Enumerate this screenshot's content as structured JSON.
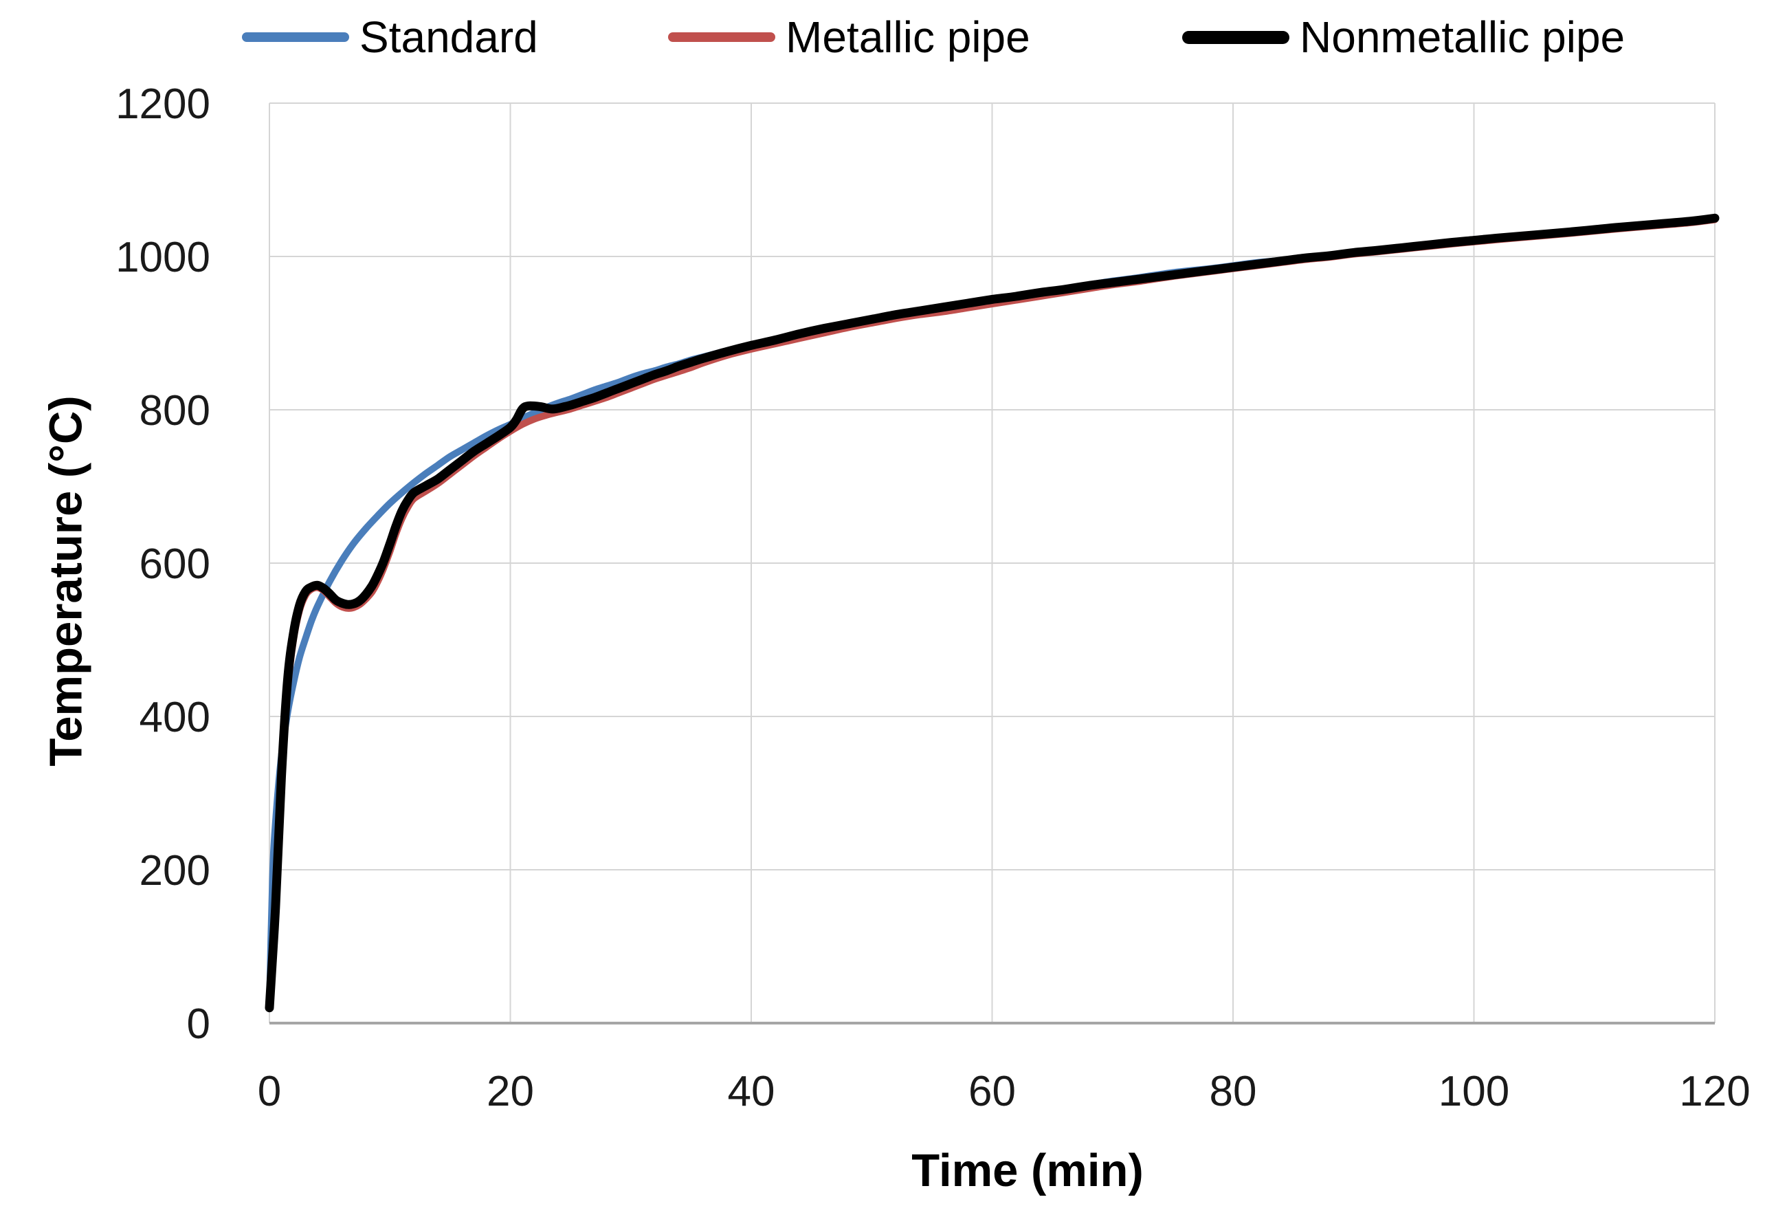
{
  "chart_data": {
    "type": "line",
    "title": "",
    "x_axis": {
      "label": "Time (min)",
      "range": [
        0,
        120
      ],
      "ticks": [
        0,
        20,
        40,
        60,
        80,
        100,
        120
      ]
    },
    "y_axis": {
      "label": "Temperature (°C)",
      "range": [
        0,
        1200
      ],
      "ticks": [
        0,
        200,
        400,
        600,
        800,
        1000,
        1200
      ]
    },
    "grid": true,
    "legend_position": "top",
    "style": {
      "background": "#ffffff",
      "grid_color": "#d5d5d5",
      "axis_line_color": "#a6a6a6",
      "text_color": "#1a1a1a"
    },
    "series": [
      {
        "name": "Standard",
        "color": "#4A7EBB",
        "line_width": 10,
        "points": [
          [
            0,
            20
          ],
          [
            0.25,
            185
          ],
          [
            0.5,
            261
          ],
          [
            1,
            349
          ],
          [
            1.5,
            404
          ],
          [
            2,
            444
          ],
          [
            2.5,
            477
          ],
          [
            3,
            502
          ],
          [
            3.5,
            525
          ],
          [
            4,
            544
          ],
          [
            5,
            576
          ],
          [
            6,
            603
          ],
          [
            7,
            626
          ],
          [
            8,
            645
          ],
          [
            9,
            662
          ],
          [
            10,
            678
          ],
          [
            11,
            692
          ],
          [
            12,
            705
          ],
          [
            13,
            717
          ],
          [
            14,
            728
          ],
          [
            15,
            739
          ],
          [
            16,
            748
          ],
          [
            17,
            757
          ],
          [
            18,
            766
          ],
          [
            19,
            774
          ],
          [
            20,
            781
          ],
          [
            21,
            789
          ],
          [
            22,
            796
          ],
          [
            23,
            803
          ],
          [
            24,
            809
          ],
          [
            25,
            814
          ],
          [
            26,
            820
          ],
          [
            27,
            826
          ],
          [
            28,
            831
          ],
          [
            29,
            836
          ],
          [
            30,
            842
          ],
          [
            31,
            847
          ],
          [
            32,
            851
          ],
          [
            33,
            856
          ],
          [
            34,
            860
          ],
          [
            35,
            865
          ],
          [
            36,
            869
          ],
          [
            38,
            877
          ],
          [
            40,
            885
          ],
          [
            42,
            892
          ],
          [
            44,
            900
          ],
          [
            46,
            906
          ],
          [
            48,
            913
          ],
          [
            50,
            918
          ],
          [
            52,
            924
          ],
          [
            54,
            929
          ],
          [
            56,
            935
          ],
          [
            58,
            940
          ],
          [
            60,
            945
          ],
          [
            62,
            949
          ],
          [
            64,
            954
          ],
          [
            66,
            958
          ],
          [
            68,
            963
          ],
          [
            70,
            968
          ],
          [
            72,
            972
          ],
          [
            75,
            979
          ],
          [
            78,
            984
          ],
          [
            80,
            988
          ],
          [
            82,
            992
          ],
          [
            84,
            995
          ],
          [
            86,
            999
          ],
          [
            88,
            1002
          ],
          [
            90,
            1006
          ],
          [
            92,
            1009
          ],
          [
            95,
            1014
          ],
          [
            98,
            1019
          ],
          [
            100,
            1022
          ],
          [
            102,
            1025
          ],
          [
            105,
            1029
          ],
          [
            108,
            1033
          ],
          [
            110,
            1036
          ],
          [
            112,
            1039
          ],
          [
            115,
            1043
          ],
          [
            118,
            1046
          ],
          [
            120,
            1049
          ]
        ]
      },
      {
        "name": "Metallic pipe",
        "color": "#C0504D",
        "line_width": 10,
        "points": [
          [
            0,
            20
          ],
          [
            0.5,
            140
          ],
          [
            1,
            308
          ],
          [
            1.5,
            432
          ],
          [
            2,
            500
          ],
          [
            2.5,
            538
          ],
          [
            3,
            558
          ],
          [
            3.5,
            566
          ],
          [
            4,
            568
          ],
          [
            4.5,
            564
          ],
          [
            5,
            556
          ],
          [
            5.5,
            548
          ],
          [
            6,
            543
          ],
          [
            6.5,
            541
          ],
          [
            7,
            542
          ],
          [
            7.5,
            546
          ],
          [
            8,
            553
          ],
          [
            8.5,
            562
          ],
          [
            9,
            576
          ],
          [
            9.5,
            594
          ],
          [
            10,
            615
          ],
          [
            10.5,
            638
          ],
          [
            11,
            658
          ],
          [
            11.5,
            673
          ],
          [
            12,
            684
          ],
          [
            13,
            694
          ],
          [
            14,
            704
          ],
          [
            15,
            716
          ],
          [
            16,
            728
          ],
          [
            17,
            740
          ],
          [
            18,
            751
          ],
          [
            19,
            762
          ],
          [
            20,
            772
          ],
          [
            21,
            781
          ],
          [
            22,
            788
          ],
          [
            23,
            793
          ],
          [
            24,
            797
          ],
          [
            25,
            801
          ],
          [
            26,
            806
          ],
          [
            27,
            811
          ],
          [
            28,
            816
          ],
          [
            29,
            822
          ],
          [
            30,
            828
          ],
          [
            31,
            834
          ],
          [
            32,
            840
          ],
          [
            33,
            845
          ],
          [
            34,
            850
          ],
          [
            35,
            855
          ],
          [
            36,
            861
          ],
          [
            38,
            871
          ],
          [
            40,
            879
          ],
          [
            42,
            886
          ],
          [
            44,
            893
          ],
          [
            46,
            900
          ],
          [
            48,
            907
          ],
          [
            50,
            913
          ],
          [
            52,
            919
          ],
          [
            54,
            924
          ],
          [
            56,
            928
          ],
          [
            58,
            933
          ],
          [
            60,
            938
          ],
          [
            62,
            943
          ],
          [
            64,
            948
          ],
          [
            66,
            953
          ],
          [
            68,
            958
          ],
          [
            70,
            963
          ],
          [
            72,
            967
          ],
          [
            75,
            974
          ],
          [
            78,
            980
          ],
          [
            80,
            984
          ],
          [
            82,
            988
          ],
          [
            84,
            992
          ],
          [
            86,
            996
          ],
          [
            88,
            999
          ],
          [
            90,
            1003
          ],
          [
            92,
            1006
          ],
          [
            95,
            1011
          ],
          [
            98,
            1016
          ],
          [
            100,
            1019
          ],
          [
            102,
            1022
          ],
          [
            105,
            1026
          ],
          [
            108,
            1030
          ],
          [
            110,
            1033
          ],
          [
            112,
            1036
          ],
          [
            115,
            1040
          ],
          [
            118,
            1044
          ],
          [
            120,
            1048
          ]
        ]
      },
      {
        "name": "Nonmetallic pipe",
        "color": "#000000",
        "line_width": 13,
        "points": [
          [
            0,
            20
          ],
          [
            0.5,
            150
          ],
          [
            1,
            322
          ],
          [
            1.5,
            446
          ],
          [
            2,
            509
          ],
          [
            2.5,
            545
          ],
          [
            3,
            563
          ],
          [
            3.5,
            569
          ],
          [
            4,
            571
          ],
          [
            4.5,
            567
          ],
          [
            5,
            560
          ],
          [
            5.5,
            552
          ],
          [
            6,
            548
          ],
          [
            6.5,
            546
          ],
          [
            7,
            547
          ],
          [
            7.5,
            551
          ],
          [
            8,
            559
          ],
          [
            8.5,
            570
          ],
          [
            9,
            585
          ],
          [
            9.5,
            603
          ],
          [
            10,
            625
          ],
          [
            10.5,
            648
          ],
          [
            11,
            668
          ],
          [
            11.5,
            682
          ],
          [
            12,
            692
          ],
          [
            13,
            701
          ],
          [
            14,
            710
          ],
          [
            15,
            722
          ],
          [
            16,
            734
          ],
          [
            17,
            746
          ],
          [
            18,
            756
          ],
          [
            19,
            766
          ],
          [
            20,
            777
          ],
          [
            20.5,
            787
          ],
          [
            21,
            801
          ],
          [
            21.5,
            805
          ],
          [
            22.5,
            804
          ],
          [
            23.5,
            801
          ],
          [
            24.5,
            804
          ],
          [
            25,
            806
          ],
          [
            26,
            811
          ],
          [
            27,
            816
          ],
          [
            28,
            822
          ],
          [
            29,
            828
          ],
          [
            30,
            834
          ],
          [
            31,
            840
          ],
          [
            32,
            846
          ],
          [
            33,
            851
          ],
          [
            34,
            857
          ],
          [
            35,
            862
          ],
          [
            36,
            867
          ],
          [
            38,
            876
          ],
          [
            40,
            884
          ],
          [
            42,
            891
          ],
          [
            44,
            899
          ],
          [
            46,
            906
          ],
          [
            48,
            912
          ],
          [
            50,
            918
          ],
          [
            52,
            924
          ],
          [
            54,
            929
          ],
          [
            56,
            934
          ],
          [
            58,
            939
          ],
          [
            60,
            944
          ],
          [
            62,
            948
          ],
          [
            64,
            953
          ],
          [
            66,
            957
          ],
          [
            68,
            962
          ],
          [
            70,
            966
          ],
          [
            72,
            970
          ],
          [
            75,
            976
          ],
          [
            78,
            982
          ],
          [
            80,
            986
          ],
          [
            82,
            990
          ],
          [
            84,
            994
          ],
          [
            86,
            998
          ],
          [
            88,
            1001
          ],
          [
            90,
            1005
          ],
          [
            92,
            1008
          ],
          [
            95,
            1013
          ],
          [
            98,
            1018
          ],
          [
            100,
            1021
          ],
          [
            102,
            1024
          ],
          [
            105,
            1028
          ],
          [
            108,
            1032
          ],
          [
            110,
            1035
          ],
          [
            112,
            1038
          ],
          [
            115,
            1042
          ],
          [
            118,
            1046
          ],
          [
            120,
            1050
          ]
        ]
      }
    ]
  }
}
